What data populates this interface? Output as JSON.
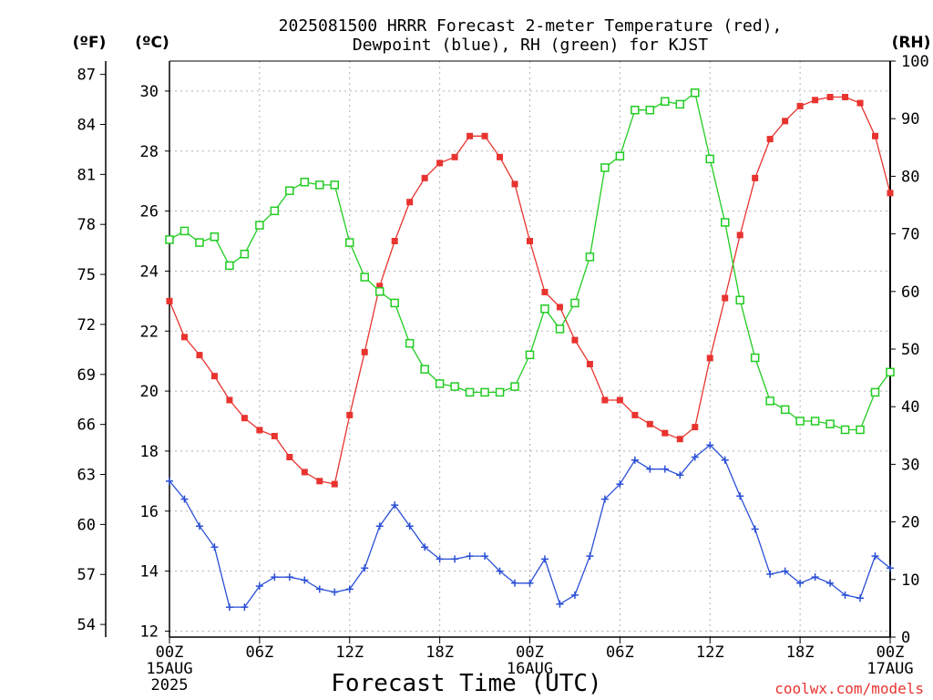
{
  "chart_data": {
    "type": "line",
    "title_line1": "2025081500 HRRR Forecast 2-meter Temperature (red),",
    "title_line2": "Dewpoint (blue), RH (green) for KJST",
    "xlabel": "Forecast Time (UTC)",
    "credit": "coolwx.com/models",
    "left_outer_unit": "(ºF)",
    "left_inner_unit": "(ºC)",
    "right_unit": "(RH)",
    "x_range_hours": [
      0,
      48
    ],
    "x_ticks": [
      {
        "hour": 0,
        "lines": [
          "00Z",
          "15AUG",
          "2025"
        ]
      },
      {
        "hour": 6,
        "lines": [
          "06Z"
        ]
      },
      {
        "hour": 12,
        "lines": [
          "12Z"
        ]
      },
      {
        "hour": 18,
        "lines": [
          "18Z"
        ]
      },
      {
        "hour": 24,
        "lines": [
          "00Z",
          "16AUG"
        ]
      },
      {
        "hour": 30,
        "lines": [
          "06Z"
        ]
      },
      {
        "hour": 36,
        "lines": [
          "12Z"
        ]
      },
      {
        "hour": 42,
        "lines": [
          "18Z"
        ]
      },
      {
        "hour": 48,
        "lines": [
          "00Z",
          "17AUG"
        ]
      }
    ],
    "celsius_range": [
      11.8,
      31.0
    ],
    "celsius_ticks": [
      "12",
      "14",
      "16",
      "18",
      "20",
      "22",
      "24",
      "26",
      "28",
      "30"
    ],
    "fahrenheit_ticks": [
      "54",
      "57",
      "60",
      "63",
      "66",
      "69",
      "72",
      "75",
      "78",
      "81",
      "84",
      "87"
    ],
    "rh_range": [
      0,
      100
    ],
    "rh_ticks": [
      "0",
      "10",
      "20",
      "30",
      "40",
      "50",
      "60",
      "70",
      "80",
      "90",
      "100"
    ],
    "grid": true,
    "colors": {
      "temperature": "#e8332f",
      "dewpoint": "#2a4fd6",
      "rh": "#22cc22",
      "grid": "#b0b0b0"
    },
    "series": [
      {
        "axis": "celsius",
        "color": "#e8332f",
        "marker": "filled-square",
        "values": [
          23.0,
          21.8,
          21.2,
          20.5,
          19.7,
          19.1,
          18.7,
          18.5,
          17.8,
          17.3,
          17.0,
          16.9,
          19.2,
          21.3,
          23.5,
          25.0,
          26.3,
          27.1,
          27.6,
          27.8,
          28.5,
          28.5,
          27.8,
          26.9,
          25.0,
          23.3,
          22.8,
          21.7,
          20.9,
          19.7,
          19.7,
          19.2,
          18.9,
          18.6,
          18.4,
          18.8,
          21.1,
          23.1,
          25.2,
          27.1,
          28.4,
          29.0,
          29.5,
          29.7,
          29.8,
          29.8,
          29.6,
          28.5,
          26.6
        ]
      },
      {
        "axis": "celsius",
        "color": "#2a4fd6",
        "marker": "plus",
        "values": [
          17.0,
          16.4,
          15.5,
          14.8,
          12.8,
          12.8,
          13.5,
          13.8,
          13.8,
          13.7,
          13.4,
          13.3,
          13.4,
          14.1,
          15.5,
          16.2,
          15.5,
          14.8,
          14.4,
          14.4,
          14.5,
          14.5,
          14.0,
          13.6,
          13.6,
          14.4,
          12.9,
          13.2,
          14.5,
          16.4,
          16.9,
          17.7,
          17.4,
          17.4,
          17.2,
          17.8,
          18.2,
          17.7,
          16.5,
          15.4,
          13.9,
          14.0,
          13.6,
          13.8,
          13.6,
          13.2,
          13.1,
          14.5,
          14.1
        ]
      },
      {
        "axis": "rh",
        "color": "#22cc22",
        "marker": "open-square",
        "values": [
          69,
          70.5,
          68.5,
          69.5,
          64.5,
          66.5,
          71.5,
          74,
          77.5,
          79,
          78.5,
          78.5,
          68.5,
          62.5,
          60,
          58,
          51,
          46.5,
          44,
          43.5,
          42.5,
          42.5,
          42.5,
          43.5,
          49,
          57,
          53.5,
          58,
          66,
          81.5,
          83.5,
          91.5,
          91.5,
          93,
          92.5,
          94.5,
          83,
          72,
          58.5,
          48.5,
          41,
          39.5,
          37.5,
          37.5,
          37,
          36,
          36,
          42.5,
          46
        ]
      }
    ]
  }
}
